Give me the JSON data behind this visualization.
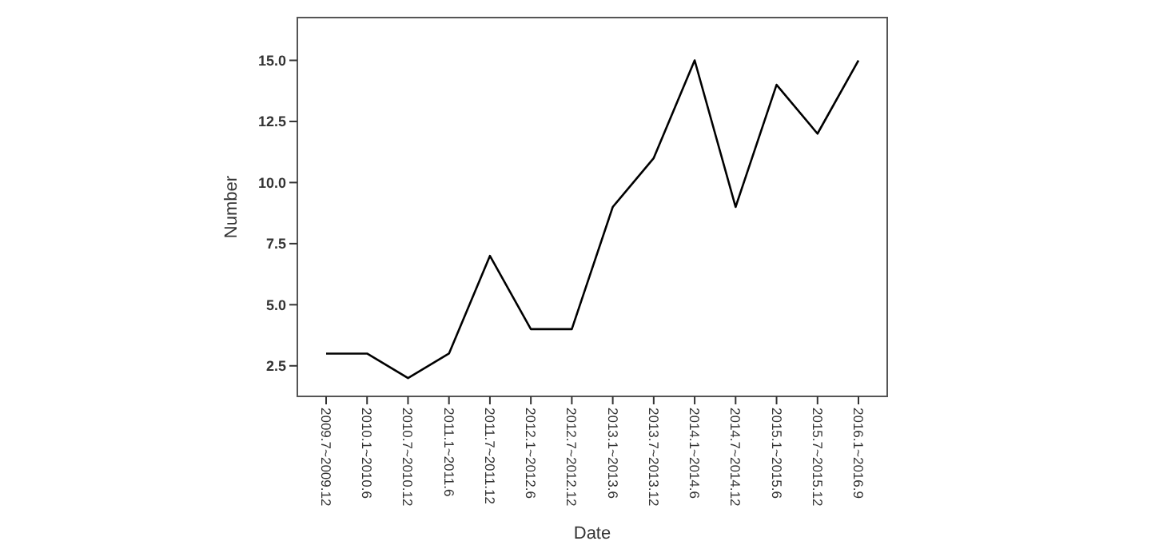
{
  "chart_data": {
    "type": "line",
    "xlabel": "Date",
    "ylabel": "Number",
    "categories": [
      "2009.7~2009.12",
      "2010.1~2010.6",
      "2010.7~2010.12",
      "2011.1~2011.6",
      "2011.7~2011.12",
      "2012.1~2012.6",
      "2012.7~2012.12",
      "2013.1~2013.6",
      "2013.7~2013.12",
      "2014.1~2014.6",
      "2014.7~2014.12",
      "2015.1~2015.6",
      "2015.7~2015.12",
      "2016.1~2016.9"
    ],
    "values": [
      3,
      3,
      2,
      3,
      7,
      4,
      4,
      9,
      11,
      15,
      9,
      14,
      12,
      15
    ],
    "color": "#000000",
    "ylim": [
      1.25,
      16.75
    ],
    "yticks": [
      {
        "value": 2.5,
        "label": "2.5"
      },
      {
        "value": 5,
        "label": "5.0"
      },
      {
        "value": 7.5,
        "label": "7.5"
      },
      {
        "value": 10,
        "label": "10.0"
      },
      {
        "value": 12.5,
        "label": "12.5"
      },
      {
        "value": 15,
        "label": "15.0"
      }
    ],
    "grid": false,
    "marker": "none",
    "line_style": "solid"
  }
}
